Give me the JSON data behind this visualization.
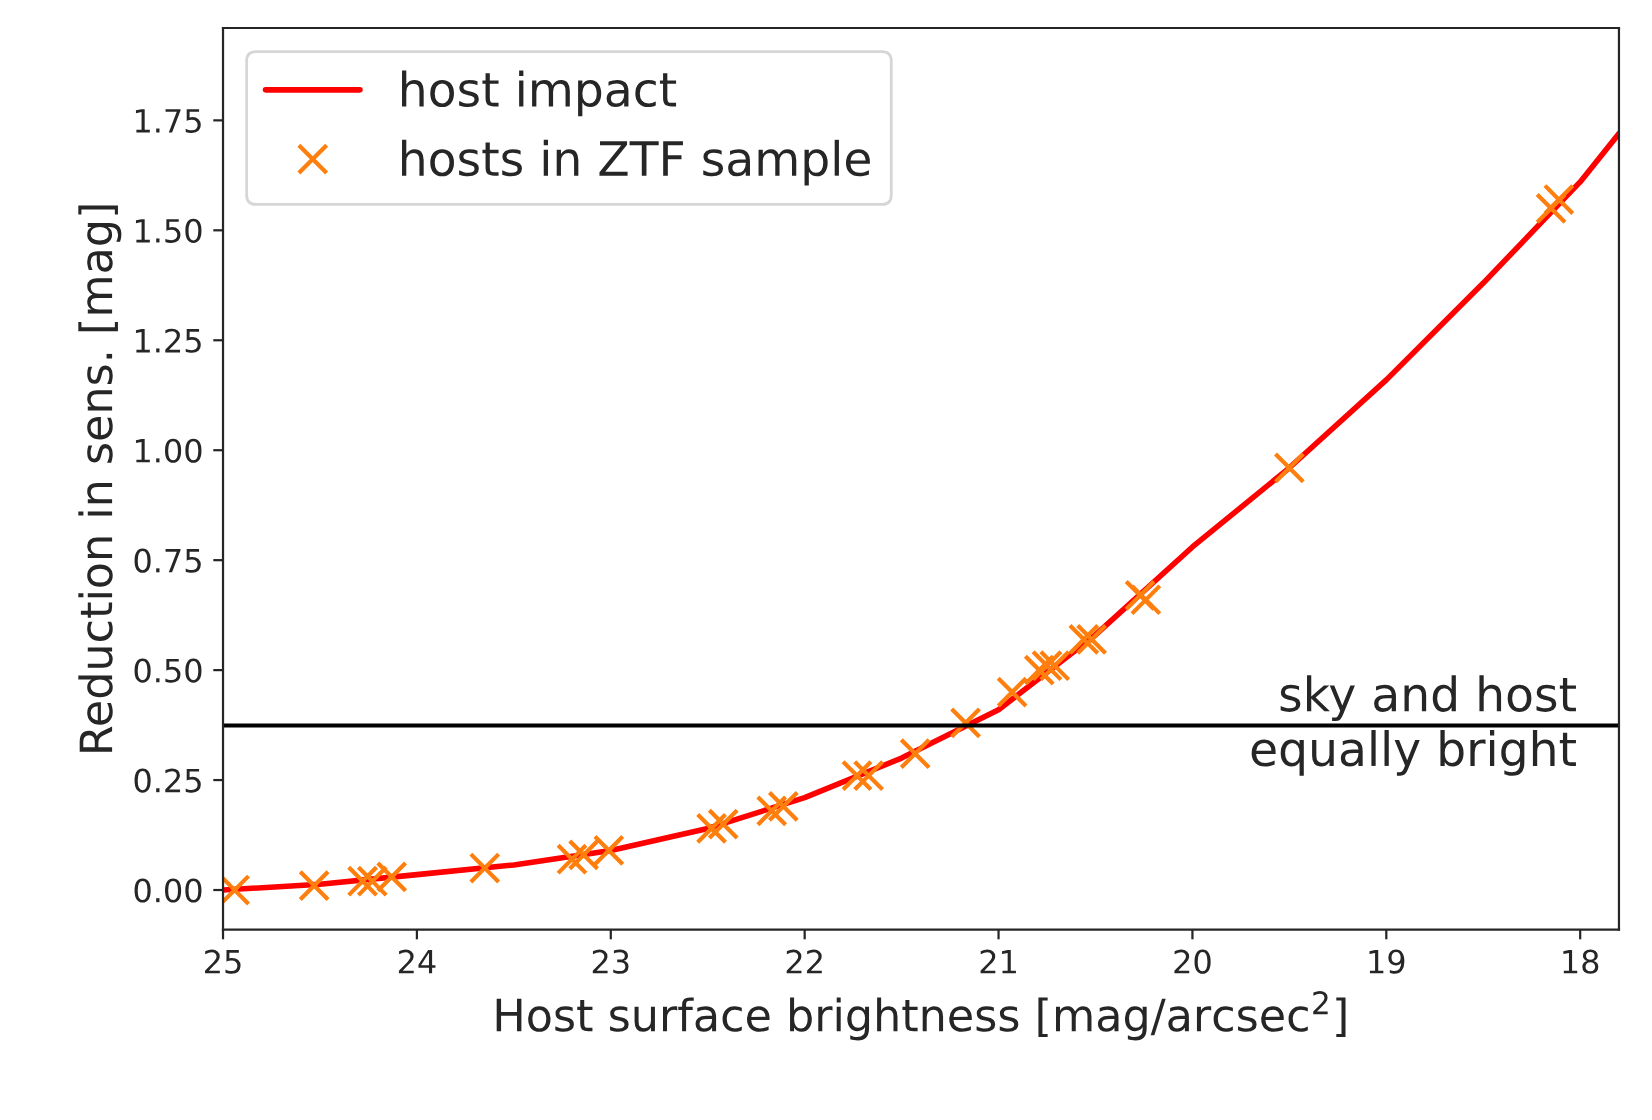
{
  "chart_data": {
    "type": "line",
    "xlabel": "Host surface brightness [mag/arcsec$^{2}$]",
    "ylabel": "Reduction in sens. [mag]",
    "series": [
      {
        "name": "host impact",
        "type": "line",
        "color": "#ff0000",
        "marker": "none",
        "line_style": "solid",
        "x": [
          25,
          24.5,
          24,
          23.5,
          23,
          22.5,
          22,
          21.5,
          21,
          20.5,
          20,
          19.5,
          19,
          18.5,
          18,
          17.8
        ],
        "values": [
          0.0,
          0.013,
          0.035,
          0.057,
          0.09,
          0.14,
          0.21,
          0.3,
          0.41,
          0.58,
          0.78,
          0.96,
          1.16,
          1.38,
          1.61,
          1.72
        ]
      },
      {
        "name": "hosts in ZTF sample",
        "type": "scatter",
        "color": "#ff7f0e",
        "marker": "cross",
        "x": [
          24.94,
          24.53,
          24.28,
          24.23,
          24.13,
          23.65,
          23.2,
          23.14,
          23.01,
          22.48,
          22.42,
          22.17,
          22.11,
          21.73,
          21.67,
          21.43,
          21.17,
          20.93,
          20.79,
          20.75,
          20.71,
          20.56,
          20.52,
          20.27,
          20.24,
          19.5,
          18.15,
          18.11
        ],
        "values": [
          0.0,
          0.01,
          0.02,
          0.02,
          0.03,
          0.05,
          0.07,
          0.08,
          0.09,
          0.14,
          0.15,
          0.18,
          0.19,
          0.26,
          0.26,
          0.31,
          0.38,
          0.45,
          0.5,
          0.51,
          0.51,
          0.57,
          0.57,
          0.67,
          0.66,
          0.96,
          1.55,
          1.57
        ]
      }
    ],
    "xlim": [
      25,
      17.8
    ],
    "ylim": [
      -0.09,
      1.96
    ],
    "xticks": [
      25,
      24,
      23,
      22,
      21,
      20,
      19,
      18
    ],
    "yticks": [
      {
        "value": 0,
        "label": "0.00"
      },
      {
        "value": 0.25,
        "label": "0.25"
      },
      {
        "value": 0.5,
        "label": "0.50"
      },
      {
        "value": 0.75,
        "label": "0.75"
      },
      {
        "value": 1.0,
        "label": "1.00"
      },
      {
        "value": 1.25,
        "label": "1.25"
      },
      {
        "value": 1.5,
        "label": "1.50"
      },
      {
        "value": 1.75,
        "label": "1.75"
      }
    ],
    "ref_lines": [
      {
        "axis": "y",
        "value": 0.374,
        "label": "sky and host\nequally bright",
        "color": "#000000",
        "line_style": "solid"
      }
    ],
    "grid": false,
    "legend": "top left"
  }
}
